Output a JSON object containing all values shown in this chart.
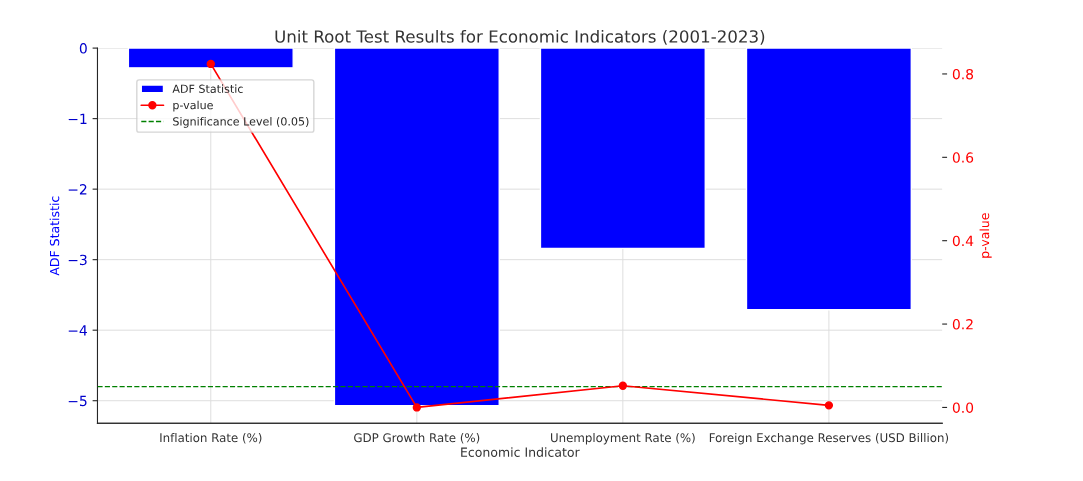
{
  "chart_data": {
    "type": "bar",
    "title": "Unit Root Test Results for Economic Indicators (2001-2023)",
    "xlabel": "Economic Indicator",
    "ylabel": "ADF Statistic",
    "y2label": "p-value",
    "categories": [
      "Inflation Rate (%)",
      "GDP Growth Rate (%)",
      "Unemployment Rate (%)",
      "Foreign Exchange Reserves (USD Billion)"
    ],
    "series": [
      {
        "name": "ADF Statistic",
        "color": "#0000ff",
        "values": [
          -0.28,
          -5.07,
          -2.84,
          -3.71
        ]
      },
      {
        "name": "p-value",
        "type": "line",
        "axis": "y2",
        "color": "#ff0000",
        "marker": "circle",
        "values": [
          0.824,
          0.0,
          0.052,
          0.005
        ]
      }
    ],
    "ref_lines": [
      {
        "axis": "y2",
        "value": 0.05,
        "label": "Significance Level (0.05)",
        "color": "#008000",
        "line_style": "dashed"
      }
    ],
    "ylim": [
      -5.32,
      0
    ],
    "yticks": [
      -5,
      -4,
      -3,
      -2,
      -1,
      0
    ],
    "y2lim": [
      -0.038,
      0.862
    ],
    "y2ticks": [
      {
        "value": 0,
        "label": "0.0"
      },
      0.2,
      0.4,
      0.6,
      0.8
    ],
    "grid": true,
    "legend": "top left"
  }
}
